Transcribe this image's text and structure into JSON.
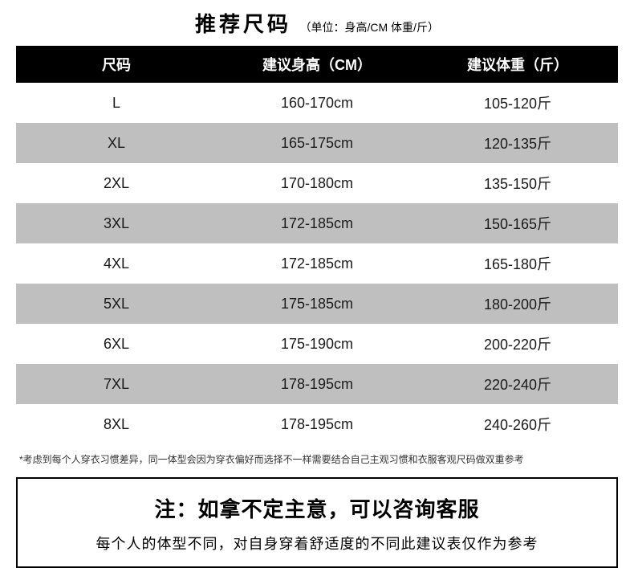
{
  "header": {
    "title": "推荐尺码",
    "subtitle": "（单位：身高/CM 体重/斤）"
  },
  "table": {
    "columns": [
      "尺码",
      "建议身高（CM）",
      "建议体重（斤）"
    ],
    "rows": [
      [
        "L",
        "160-170cm",
        "105-120斤"
      ],
      [
        "XL",
        "165-175cm",
        "120-135斤"
      ],
      [
        "2XL",
        "170-180cm",
        "135-150斤"
      ],
      [
        "3XL",
        "172-185cm",
        "150-165斤"
      ],
      [
        "4XL",
        "172-185cm",
        "165-180斤"
      ],
      [
        "5XL",
        "175-185cm",
        "180-200斤"
      ],
      [
        "6XL",
        "175-190cm",
        "200-220斤"
      ],
      [
        "7XL",
        "178-195cm",
        "220-240斤"
      ],
      [
        "8XL",
        "178-195cm",
        "240-260斤"
      ]
    ],
    "header_bg": "#000000",
    "header_fg": "#ffffff",
    "row_even_bg": "#bfbfbf",
    "row_odd_bg": "#ffffff",
    "body_font_size": 18
  },
  "footnote": "*考虑到每个人穿衣习惯差异，同一体型会因为穿衣偏好而选择不一样需要结合自己主观习惯和衣服客观尺码做双重参考",
  "notice": {
    "title": "注：如拿不定主意，可以咨询客服",
    "body": "每个人的体型不同，对自身穿着舒适度的不同此建议表仅作为参考"
  }
}
